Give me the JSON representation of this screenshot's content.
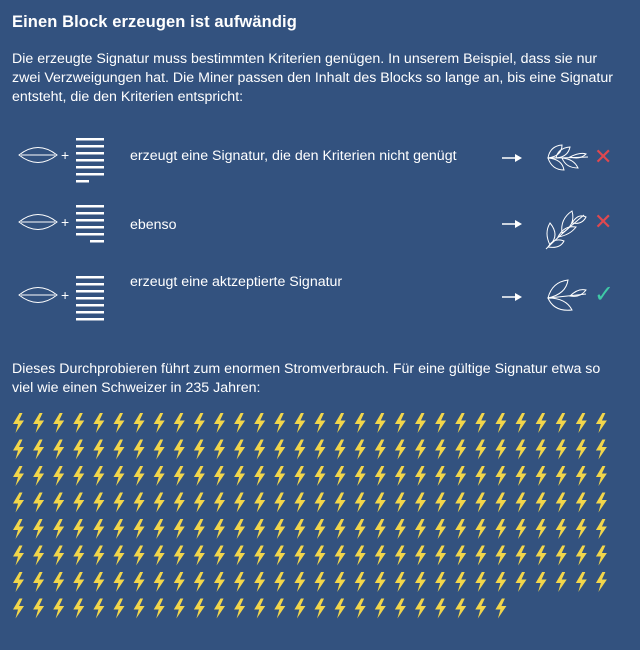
{
  "title": "Einen Block erzeugen ist aufwändig",
  "intro": "Die erzeugte Signatur muss bestimmten Kriterien genügen. In unserem Beispiel, dass sie nur zwei Verzweigungen hat. Die Miner passen den Inhalt des Blocks so lange an, bis eine Signatur entsteht, die den Kriterien entspricht:",
  "rows": [
    {
      "plus": "+",
      "text": "erzeugt eine Signatur, die den Kriterien nicht genügt",
      "result": "rejected",
      "mark": "✕"
    },
    {
      "plus": "+",
      "text": "ebenso",
      "result": "rejected",
      "mark": "✕"
    },
    {
      "plus": "+",
      "text": "erzeugt eine aktzeptierte Signatur",
      "result": "accepted",
      "mark": "✓"
    }
  ],
  "outro": "Dieses Durchprobieren führt zum enormen Stromverbrauch. Für eine gültige Signatur etwa so viel wie einen Schweizer in 235 Jahren:",
  "bolts": {
    "count": 235,
    "per_row": 30,
    "color": "#f2d64b",
    "icon": "lightning-bolt-icon"
  },
  "colors": {
    "background": "#33527f",
    "reject": "#e0484f",
    "accept": "#3fc9a6",
    "line": "#ffffff"
  },
  "icons": {
    "seed": "seed-icon",
    "block": "block-lines-icon",
    "arrow": "arrow-right-icon",
    "leaf": "leaf-branch-icon"
  }
}
